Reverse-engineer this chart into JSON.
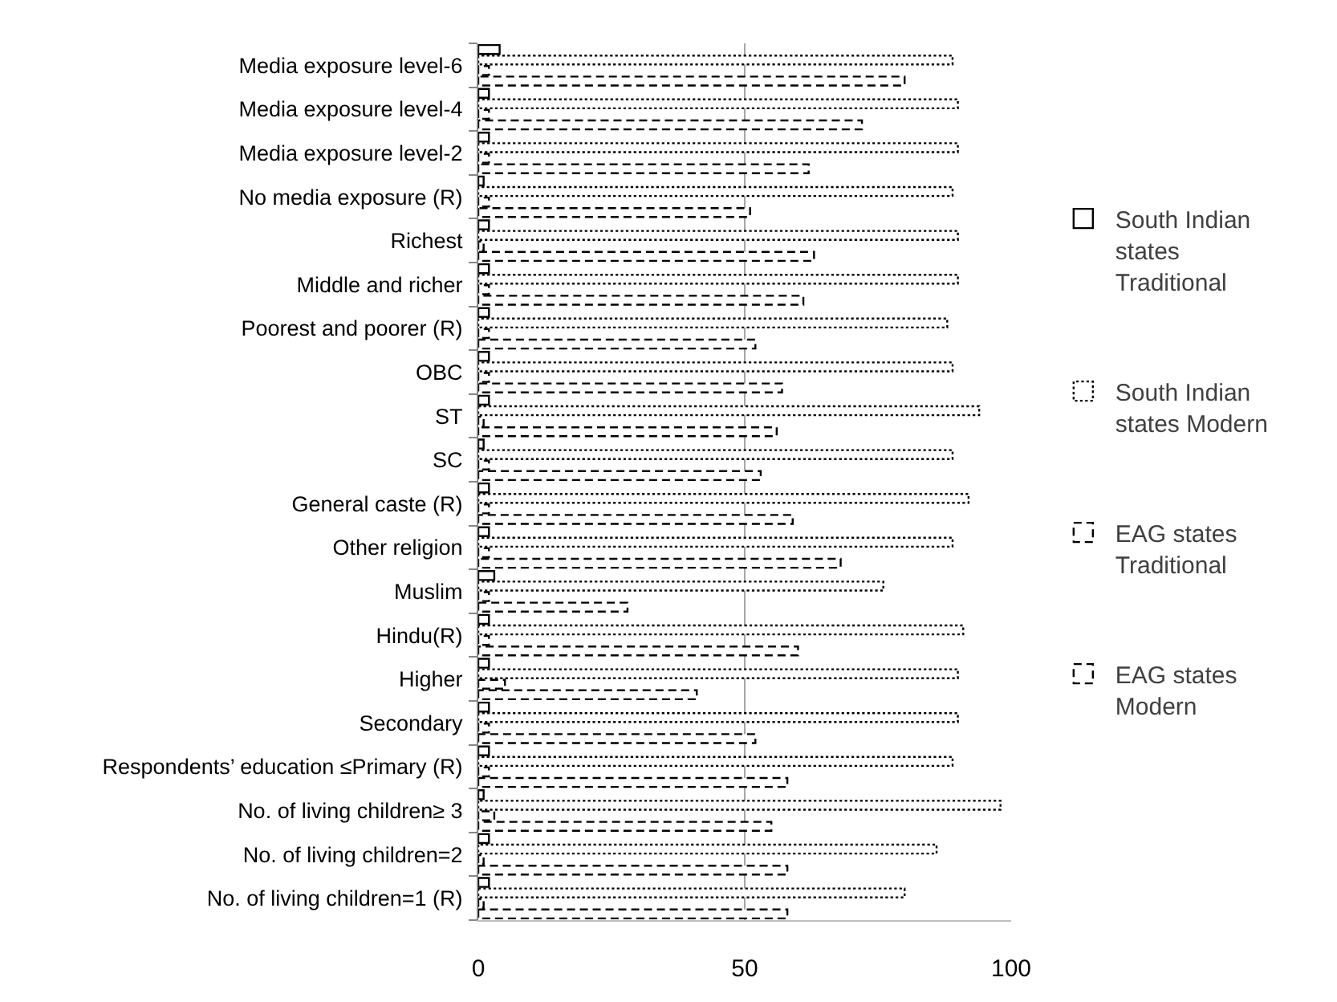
{
  "chart_data": {
    "type": "bar",
    "orientation": "horizontal",
    "categories": [
      "Media exposure level-6",
      "Media exposure level-4",
      "Media exposure level-2",
      "No media exposure (R)",
      "Richest",
      "Middle and richer",
      "Poorest and poorer (R)",
      "OBC",
      "ST",
      "SC",
      "General caste (R)",
      "Other religion",
      "Muslim",
      "Hindu(R)",
      "Higher",
      "Secondary",
      "Respondents’ education ≤Primary (R)",
      "No. of living children≥ 3",
      "No. of living children=2",
      "No. of living children=1 (R)"
    ],
    "series": [
      {
        "name": "South Indian states Traditional",
        "color": "#000000",
        "line_style": "solid",
        "values": [
          4,
          2,
          2,
          1,
          2,
          2,
          2,
          2,
          2,
          1,
          2,
          2,
          3,
          2,
          2,
          2,
          2,
          1,
          2,
          2
        ]
      },
      {
        "name": "South Indian states Modern",
        "color": "#000000",
        "line_style": "dotted",
        "values": [
          89,
          90,
          90,
          89,
          90,
          90,
          88,
          89,
          94,
          89,
          92,
          89,
          76,
          91,
          90,
          90,
          89,
          98,
          86,
          80
        ]
      },
      {
        "name": "EAG states Traditional",
        "color": "#000000",
        "line_style": "dashed",
        "values": [
          2,
          2,
          2,
          2,
          1,
          2,
          2,
          2,
          1,
          2,
          2,
          2,
          2,
          2,
          5,
          2,
          2,
          3,
          1,
          1
        ]
      },
      {
        "name": "EAG states Modern",
        "color": "#000000",
        "line_style": "dashed",
        "values": [
          80,
          72,
          62,
          51,
          63,
          61,
          52,
          57,
          56,
          53,
          59,
          68,
          28,
          60,
          41,
          52,
          58,
          55,
          58,
          58
        ]
      }
    ],
    "xlim": [
      0,
      100
    ],
    "xticks": [
      0,
      50,
      100
    ],
    "grid": "x",
    "legend": "right"
  }
}
